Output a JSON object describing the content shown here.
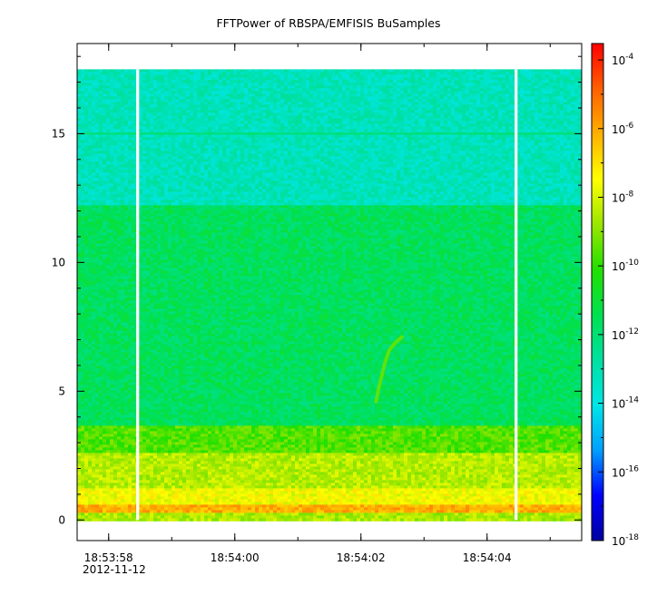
{
  "chart_data": {
    "type": "heatmap",
    "title": "FFTPower of RBSPA/EMFISIS  BuSamples",
    "xlabel": "",
    "ylabel": "",
    "x_tick_labels": [
      "18:53:58",
      "18:54:00",
      "18:54:02",
      "18:54:04"
    ],
    "x_tick_values_s": [
      0,
      2,
      4,
      6
    ],
    "x_date_label": "2012-11-12",
    "xlim_s": [
      -0.5,
      7.5
    ],
    "y_ticks": [
      0,
      5,
      10,
      15
    ],
    "ylim": [
      -0.8,
      18.5
    ],
    "y_data_extent": [
      0,
      17.5
    ],
    "data_gaps_s": [
      0.46,
      6.46
    ],
    "colorbar": {
      "scale": "log",
      "range": [
        1e-18,
        0.0003
      ],
      "tick_exponents": [
        -4,
        -6,
        -8,
        -10,
        -12,
        -14,
        -16,
        -18
      ],
      "tick_base": "10",
      "colors": [
        "#0000a0",
        "#0000ff",
        "#00a0ff",
        "#00e6e6",
        "#00e0a0",
        "#00e050",
        "#22e000",
        "#9be600",
        "#ffff00",
        "#ffb000",
        "#ff6000",
        "#ff0000"
      ]
    },
    "bands": [
      {
        "y_range": [
          0,
          0.3
        ],
        "level": 0.65,
        "note_color": "#f0b000"
      },
      {
        "y_range": [
          0.3,
          0.55
        ],
        "level": 0.82,
        "note_color": "#ff5a00"
      },
      {
        "y_range": [
          0.55,
          1.2
        ],
        "level": 0.72,
        "note_color": "#ffa000"
      },
      {
        "y_range": [
          1.2,
          2.6
        ],
        "level": 0.66,
        "note_color": "#f5c000"
      },
      {
        "y_range": [
          2.6,
          3.7
        ],
        "level": 0.58,
        "note_color": "#d8dc00"
      },
      {
        "y_range": [
          3.7,
          12.2
        ],
        "level": 0.44,
        "note_color": "#46e000"
      },
      {
        "y_range": [
          12.2,
          17.5
        ],
        "level": 0.33,
        "note_color": "#00e878"
      }
    ],
    "lines": [
      {
        "y": 15.0,
        "level": 0.42
      }
    ],
    "feature": {
      "points": [
        [
          4.24,
          4.6
        ],
        [
          4.28,
          5.1
        ],
        [
          4.33,
          5.6
        ],
        [
          4.38,
          6.1
        ],
        [
          4.45,
          6.6
        ],
        [
          4.55,
          6.9
        ],
        [
          4.65,
          7.1
        ]
      ],
      "level": 0.6
    }
  }
}
